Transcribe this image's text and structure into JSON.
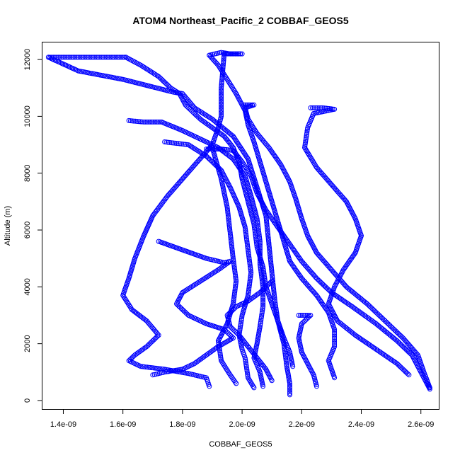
{
  "chart_data": {
    "type": "scatter",
    "title": "ATOM4 Northeast_Pacific_2 COBBAF_GEOS5",
    "xlabel": "COBBAF_GEOS5",
    "ylabel": "Altitude (m)",
    "xlim": [
      1.33e-09,
      2.66e-09
    ],
    "ylim": [
      -300,
      12600
    ],
    "x_ticks": [
      1.4e-09,
      1.6e-09,
      1.8e-09,
      2e-09,
      2.2e-09,
      2.4e-09,
      2.6e-09
    ],
    "x_tick_labels": [
      "1.4e-09",
      "1.6e-09",
      "1.8e-09",
      "2.0e-09",
      "2.2e-09",
      "2.4e-09",
      "2.6e-09"
    ],
    "y_ticks": [
      0,
      2000,
      4000,
      6000,
      8000,
      10000,
      12000
    ],
    "y_tick_labels": [
      "0",
      "2000",
      "4000",
      "6000",
      "8000",
      "10000",
      "12000"
    ],
    "marker": "open-circle",
    "color": "#0000ff",
    "grid": false,
    "series": [
      {
        "values": [
          [
            1.35e-09,
            12080
          ],
          [
            1.45e-09,
            11600
          ],
          [
            1.6e-09,
            11300
          ],
          [
            1.77e-09,
            10850
          ],
          [
            1.8e-09,
            10800
          ],
          [
            1.84e-09,
            10300
          ],
          [
            1.9e-09,
            9900
          ],
          [
            1.97e-09,
            9300
          ],
          [
            2.02e-09,
            8500
          ],
          [
            2.05e-09,
            7500
          ],
          [
            2.08e-09,
            6500
          ],
          [
            2.09e-09,
            5500
          ],
          [
            2.1e-09,
            4500
          ],
          [
            2.11e-09,
            3500
          ],
          [
            2.12e-09,
            2800
          ],
          [
            2.14e-09,
            2000
          ],
          [
            2.15e-09,
            1200
          ],
          [
            2.16e-09,
            600
          ],
          [
            2.16e-09,
            200
          ]
        ]
      },
      {
        "values": [
          [
            1.35e-09,
            12080
          ],
          [
            1.4e-09,
            12080
          ],
          [
            1.45e-09,
            12080
          ],
          [
            1.5e-09,
            12080
          ],
          [
            1.55e-09,
            12080
          ],
          [
            1.61e-09,
            12080
          ]
        ]
      },
      {
        "values": [
          [
            1.61e-09,
            12080
          ],
          [
            1.66e-09,
            11800
          ],
          [
            1.72e-09,
            11400
          ],
          [
            1.76e-09,
            11000
          ],
          [
            1.79e-09,
            10800
          ],
          [
            1.81e-09,
            10400
          ],
          [
            1.84e-09,
            10100
          ],
          [
            1.86e-09,
            9900
          ],
          [
            1.9e-09,
            9600
          ],
          [
            1.94e-09,
            9300
          ],
          [
            1.97e-09,
            8900
          ],
          [
            1.99e-09,
            8400
          ],
          [
            2e-09,
            7800
          ],
          [
            2.02e-09,
            7000
          ],
          [
            2.04e-09,
            6200
          ],
          [
            2.05e-09,
            5400
          ],
          [
            2.07e-09,
            4700
          ],
          [
            2.08e-09,
            4000
          ],
          [
            2.1e-09,
            3400
          ],
          [
            2.12e-09,
            2800
          ],
          [
            2.14e-09,
            2200
          ],
          [
            2.16e-09,
            1700
          ],
          [
            2.17e-09,
            1200
          ]
        ]
      },
      {
        "values": [
          [
            1.62e-09,
            9850
          ],
          [
            1.67e-09,
            9800
          ],
          [
            1.73e-09,
            9800
          ],
          [
            1.8e-09,
            9500
          ],
          [
            1.86e-09,
            9200
          ],
          [
            1.92e-09,
            8900
          ],
          [
            1.97e-09,
            8500
          ],
          [
            2.01e-09,
            7900
          ],
          [
            2.03e-09,
            7200
          ],
          [
            2.05e-09,
            6400
          ],
          [
            2.06e-09,
            5600
          ],
          [
            2.06e-09,
            4800
          ],
          [
            2.07e-09,
            4000
          ],
          [
            2.07e-09,
            3300
          ],
          [
            2.06e-09,
            2600
          ],
          [
            2.05e-09,
            2000
          ],
          [
            2.04e-09,
            1500
          ],
          [
            2.06e-09,
            1000
          ],
          [
            2.07e-09,
            500
          ]
        ]
      },
      {
        "values": [
          [
            1.74e-09,
            9100
          ],
          [
            1.78e-09,
            9050
          ],
          [
            1.82e-09,
            9000
          ],
          [
            1.88e-09,
            8600
          ],
          [
            1.93e-09,
            8100
          ],
          [
            1.96e-09,
            7500
          ],
          [
            1.99e-09,
            6800
          ],
          [
            2.01e-09,
            6100
          ],
          [
            2.02e-09,
            5300
          ],
          [
            2.03e-09,
            4500
          ],
          [
            2.02e-09,
            3700
          ],
          [
            2e-09,
            3000
          ],
          [
            1.99e-09,
            2300
          ],
          [
            2e-09,
            1800
          ],
          [
            2.01e-09,
            1500
          ],
          [
            2.02e-09,
            800
          ],
          [
            2.04e-09,
            450
          ]
        ]
      },
      {
        "values": [
          [
            1.88e-09,
            8850
          ],
          [
            1.93e-09,
            8850
          ],
          [
            1.97e-09,
            8800
          ],
          [
            2e-09,
            8400
          ],
          [
            2.03e-09,
            7900
          ],
          [
            2.05e-09,
            7300
          ],
          [
            2.08e-09,
            6700
          ],
          [
            2.12e-09,
            6100
          ],
          [
            2.16e-09,
            5500
          ],
          [
            2.2e-09,
            4900
          ],
          [
            2.25e-09,
            4300
          ],
          [
            2.3e-09,
            3800
          ],
          [
            2.37e-09,
            3300
          ],
          [
            2.45e-09,
            2700
          ],
          [
            2.52e-09,
            2100
          ],
          [
            2.57e-09,
            1600
          ],
          [
            2.6e-09,
            1000
          ],
          [
            2.63e-09,
            400
          ]
        ]
      },
      {
        "values": [
          [
            1.89e-09,
            12150
          ],
          [
            1.93e-09,
            12250
          ],
          [
            1.96e-09,
            12200
          ],
          [
            2e-09,
            12200
          ],
          [
            1.94e-09,
            12200
          ],
          [
            1.93e-09,
            11000
          ],
          [
            1.93e-09,
            10000
          ],
          [
            1.92e-09,
            9600
          ],
          [
            1.9e-09,
            9000
          ],
          [
            1.85e-09,
            8400
          ],
          [
            1.8e-09,
            7800
          ],
          [
            1.75e-09,
            7200
          ],
          [
            1.7e-09,
            6500
          ],
          [
            1.67e-09,
            5800
          ],
          [
            1.64e-09,
            5000
          ],
          [
            1.62e-09,
            4300
          ],
          [
            1.6e-09,
            3700
          ],
          [
            1.63e-09,
            3200
          ],
          [
            1.68e-09,
            2800
          ],
          [
            1.72e-09,
            2300
          ],
          [
            1.68e-09,
            1900
          ],
          [
            1.64e-09,
            1600
          ],
          [
            1.62e-09,
            1400
          ],
          [
            1.66e-09,
            1200
          ],
          [
            1.74e-09,
            1100
          ],
          [
            1.82e-09,
            950
          ],
          [
            1.88e-09,
            800
          ],
          [
            1.89e-09,
            500
          ]
        ]
      },
      {
        "values": [
          [
            1.89e-09,
            12150
          ],
          [
            1.92e-09,
            11800
          ],
          [
            1.95e-09,
            11300
          ],
          [
            1.98e-09,
            10800
          ],
          [
            2.01e-09,
            10200
          ],
          [
            2.02e-09,
            9700
          ],
          [
            2.04e-09,
            9100
          ],
          [
            2.06e-09,
            8400
          ],
          [
            2.08e-09,
            7700
          ],
          [
            2.1e-09,
            7000
          ],
          [
            2.12e-09,
            6300
          ],
          [
            2.14e-09,
            5600
          ],
          [
            2.16e-09,
            4900
          ],
          [
            2.2e-09,
            4300
          ],
          [
            2.25e-09,
            3700
          ],
          [
            2.29e-09,
            3100
          ],
          [
            2.31e-09,
            2500
          ],
          [
            2.31e-09,
            1900
          ],
          [
            2.29e-09,
            1400
          ],
          [
            2.31e-09,
            800
          ]
        ]
      },
      {
        "values": [
          [
            2e-09,
            10400
          ],
          [
            2.04e-09,
            10400
          ],
          [
            2.01e-09,
            10300
          ],
          [
            2.02e-09,
            9900
          ],
          [
            2.05e-09,
            9400
          ],
          [
            2.09e-09,
            8900
          ],
          [
            2.13e-09,
            8300
          ],
          [
            2.16e-09,
            7700
          ],
          [
            2.18e-09,
            7100
          ],
          [
            2.2e-09,
            6400
          ],
          [
            2.22e-09,
            5800
          ],
          [
            2.25e-09,
            5200
          ],
          [
            2.3e-09,
            4600
          ],
          [
            2.35e-09,
            4000
          ],
          [
            2.42e-09,
            3400
          ],
          [
            2.48e-09,
            2800
          ],
          [
            2.54e-09,
            2200
          ],
          [
            2.59e-09,
            1600
          ],
          [
            2.61e-09,
            1000
          ],
          [
            2.63e-09,
            450
          ]
        ]
      },
      {
        "values": [
          [
            2.23e-09,
            10300
          ],
          [
            2.27e-09,
            10300
          ],
          [
            2.31e-09,
            10250
          ],
          [
            2.24e-09,
            10100
          ],
          [
            2.22e-09,
            9600
          ],
          [
            2.21e-09,
            8900
          ],
          [
            2.25e-09,
            8200
          ],
          [
            2.3e-09,
            7600
          ],
          [
            2.35e-09,
            7000
          ],
          [
            2.38e-09,
            6400
          ],
          [
            2.4e-09,
            5800
          ],
          [
            2.38e-09,
            5200
          ],
          [
            2.34e-09,
            4600
          ],
          [
            2.31e-09,
            4000
          ],
          [
            2.29e-09,
            3400
          ],
          [
            2.32e-09,
            2800
          ],
          [
            2.38e-09,
            2300
          ],
          [
            2.45e-09,
            1800
          ],
          [
            2.52e-09,
            1300
          ],
          [
            2.56e-09,
            900
          ]
        ]
      },
      {
        "values": [
          [
            1.9e-09,
            8900
          ],
          [
            1.93e-09,
            7800
          ],
          [
            1.95e-09,
            6800
          ],
          [
            1.96e-09,
            5900
          ],
          [
            1.97e-09,
            5000
          ],
          [
            1.98e-09,
            4200
          ],
          [
            1.97e-09,
            3400
          ],
          [
            1.95e-09,
            2700
          ],
          [
            1.92e-09,
            2100
          ],
          [
            1.93e-09,
            1400
          ],
          [
            1.96e-09,
            900
          ],
          [
            1.98e-09,
            600
          ]
        ]
      },
      {
        "values": [
          [
            1.72e-09,
            5600
          ],
          [
            1.8e-09,
            5300
          ],
          [
            1.88e-09,
            5000
          ],
          [
            1.94e-09,
            4850
          ],
          [
            1.96e-09,
            4900
          ],
          [
            1.92e-09,
            4600
          ],
          [
            1.86e-09,
            4200
          ],
          [
            1.8e-09,
            3800
          ],
          [
            1.78e-09,
            3400
          ],
          [
            1.82e-09,
            3000
          ],
          [
            1.88e-09,
            2700
          ],
          [
            1.94e-09,
            2500
          ],
          [
            1.97e-09,
            2200
          ],
          [
            1.92e-09,
            1900
          ],
          [
            1.88e-09,
            1600
          ],
          [
            1.84e-09,
            1300
          ],
          [
            1.8e-09,
            1100
          ],
          [
            1.74e-09,
            1000
          ],
          [
            1.7e-09,
            900
          ]
        ]
      },
      {
        "values": [
          [
            2.19e-09,
            3000
          ],
          [
            2.23e-09,
            3000
          ],
          [
            2.2e-09,
            2700
          ],
          [
            2.19e-09,
            2200
          ],
          [
            2.2e-09,
            1700
          ],
          [
            2.22e-09,
            1300
          ],
          [
            2.24e-09,
            900
          ],
          [
            2.25e-09,
            500
          ]
        ]
      },
      {
        "values": [
          [
            2.1e-09,
            4200
          ],
          [
            2.06e-09,
            3800
          ],
          [
            2.02e-09,
            3500
          ],
          [
            1.98e-09,
            3300
          ],
          [
            1.95e-09,
            3000
          ],
          [
            1.96e-09,
            2600
          ],
          [
            1.99e-09,
            2300
          ],
          [
            2.02e-09,
            1900
          ],
          [
            2.05e-09,
            1500
          ],
          [
            2.08e-09,
            1100
          ],
          [
            2.1e-09,
            700
          ]
        ]
      }
    ]
  }
}
